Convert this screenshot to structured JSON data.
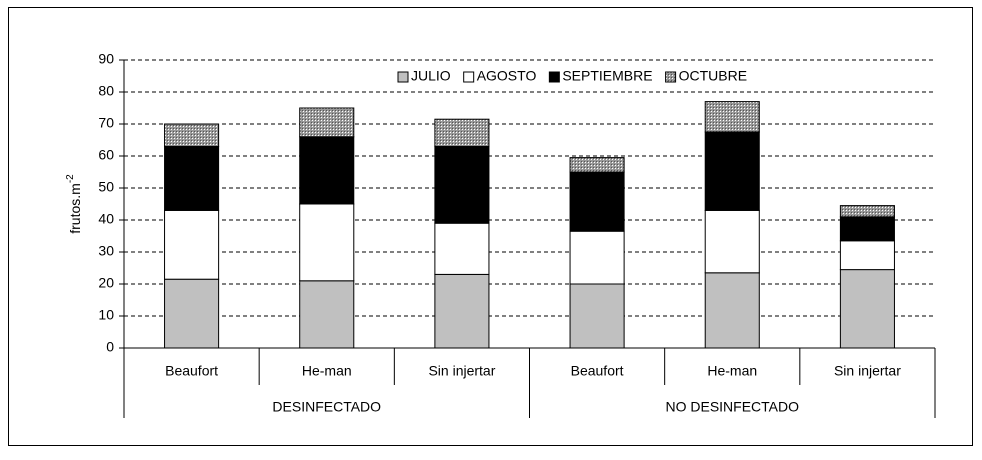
{
  "chart_data": {
    "type": "stacked_bar",
    "ylabel": "frutos.m",
    "ylabel_sup": "-2",
    "categories": [
      "Beaufort",
      "He-man",
      "Sin injertar",
      "Beaufort",
      "He-man",
      "Sin injertar"
    ],
    "groups": [
      "DESINFECTADO",
      "NO DESINFECTADO"
    ],
    "series": [
      {
        "name": "JULIO",
        "color": "#c0c0c0",
        "values": [
          21.5,
          21,
          23,
          20,
          23.5,
          24.5
        ]
      },
      {
        "name": "AGOSTO",
        "color": "#ffffff",
        "values": [
          21.5,
          24,
          16,
          16.5,
          19.5,
          9
        ]
      },
      {
        "name": "SEPTIEMBRE",
        "color": "#000000",
        "values": [
          20,
          21,
          24,
          18.5,
          24.5,
          7.5
        ]
      },
      {
        "name": "OCTUBRE",
        "color": "#999999",
        "pattern": "dots",
        "values": [
          7,
          9,
          8.5,
          4.5,
          9.5,
          3.5
        ]
      }
    ],
    "ylim": [
      0,
      90
    ],
    "yticks": [
      0,
      10,
      20,
      30,
      40,
      50,
      60,
      70,
      80,
      90
    ],
    "grid": true,
    "legend": "top-right"
  }
}
